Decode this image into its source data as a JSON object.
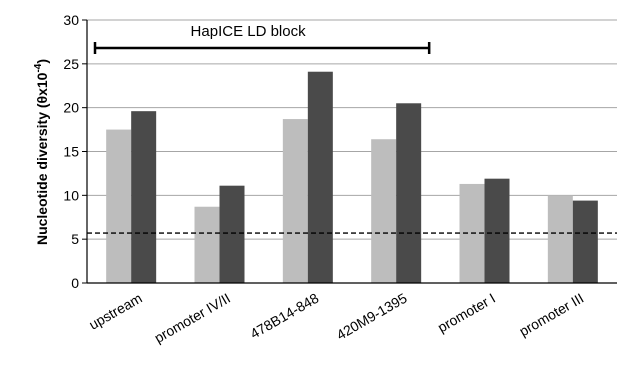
{
  "chart_data": {
    "type": "bar",
    "categories": [
      "upstream",
      "promoter IV/II",
      "478B14-848",
      "420M9-1395",
      "promoter I",
      "promoter III"
    ],
    "series": [
      {
        "values": [
          17.5,
          8.7,
          18.7,
          16.4,
          11.3,
          10.0
        ],
        "color": "#bdbdbd"
      },
      {
        "values": [
          19.6,
          11.1,
          24.1,
          20.5,
          11.9,
          9.4
        ],
        "color": "#4a4a4a"
      }
    ],
    "ylabel_prefix": "Nucleotide diversity (θx10",
    "ylabel_exponent": "-4",
    "ylabel_suffix": ")",
    "ylim": [
      0,
      30
    ],
    "yticks": [
      0,
      5,
      10,
      15,
      20,
      25,
      30
    ],
    "grid": true,
    "reference_line": {
      "y": 5.7,
      "style": "dashed"
    },
    "annotation": {
      "text": "HapICE LD block",
      "span": [
        "upstream",
        "420M9-1395"
      ]
    }
  }
}
